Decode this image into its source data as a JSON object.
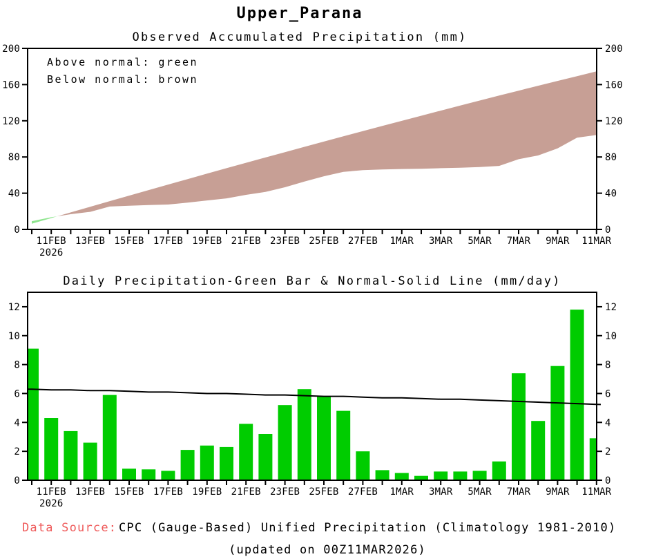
{
  "page": {
    "title": "Upper_Parana",
    "background": "#FFFFFF"
  },
  "footer": {
    "label": "Data Source:",
    "source": "CPC (Gauge-Based) Unified Precipitation (Climatology 1981-2010)",
    "updated": "(updated on 00Z11MAR2026)",
    "label_color": "#EF5B5B"
  },
  "chart_data": [
    {
      "type": "area",
      "title": "Observed Accumulated Precipitation (mm)",
      "annotations": [
        "Above normal: green",
        "Below normal: brown"
      ],
      "legend_meaning": "band between observed and normal accumulation; green where observed above normal, brown where below",
      "x": [
        "10FEB",
        "11FEB",
        "12FEB",
        "13FEB",
        "14FEB",
        "15FEB",
        "16FEB",
        "17FEB",
        "18FEB",
        "19FEB",
        "20FEB",
        "21FEB",
        "22FEB",
        "23FEB",
        "24FEB",
        "25FEB",
        "26FEB",
        "27FEB",
        "28FEB",
        "1MAR",
        "2MAR",
        "3MAR",
        "4MAR",
        "5MAR",
        "6MAR",
        "7MAR",
        "8MAR",
        "9MAR",
        "10MAR",
        "11MAR"
      ],
      "x_tick_labels": [
        "11FEB",
        "13FEB",
        "15FEB",
        "17FEB",
        "19FEB",
        "21FEB",
        "23FEB",
        "25FEB",
        "27FEB",
        "1MAR",
        "3MAR",
        "5MAR",
        "7MAR",
        "9MAR",
        "11MAR"
      ],
      "x_year_label": "2026",
      "ylim": [
        0,
        200
      ],
      "yticks": [
        0,
        40,
        80,
        120,
        160,
        200
      ],
      "grid": false,
      "series": [
        {
          "name": "Normal accumulated (mm)",
          "values": [
            6.3,
            12.55,
            18.8,
            25.0,
            31.2,
            37.35,
            43.45,
            49.55,
            55.6,
            61.6,
            67.6,
            73.55,
            79.45,
            85.35,
            91.2,
            97.0,
            102.8,
            108.55,
            114.25,
            119.95,
            125.6,
            131.2,
            136.8,
            142.35,
            147.85,
            153.3,
            158.7,
            164.05,
            169.35,
            174.6
          ]
        },
        {
          "name": "Observed accumulated (mm)",
          "values": [
            9.1,
            13.4,
            16.8,
            19.4,
            25.3,
            26.1,
            26.85,
            27.5,
            29.6,
            32.0,
            34.3,
            38.2,
            41.4,
            46.6,
            52.9,
            58.7,
            63.5,
            65.5,
            66.2,
            66.7,
            67.0,
            67.6,
            68.2,
            68.85,
            70.15,
            77.55,
            81.65,
            89.55,
            101.35,
            104.25
          ]
        }
      ],
      "colors": {
        "above_normal": "#8FE58F",
        "below_normal": "#C79F95"
      }
    },
    {
      "type": "bar",
      "title": "Daily Precipitation-Green Bar & Normal-Solid Line (mm/day)",
      "x": [
        "10FEB",
        "11FEB",
        "12FEB",
        "13FEB",
        "14FEB",
        "15FEB",
        "16FEB",
        "17FEB",
        "18FEB",
        "19FEB",
        "20FEB",
        "21FEB",
        "22FEB",
        "23FEB",
        "24FEB",
        "25FEB",
        "26FEB",
        "27FEB",
        "28FEB",
        "1MAR",
        "2MAR",
        "3MAR",
        "4MAR",
        "5MAR",
        "6MAR",
        "7MAR",
        "8MAR",
        "9MAR",
        "10MAR",
        "11MAR"
      ],
      "x_tick_labels": [
        "11FEB",
        "13FEB",
        "15FEB",
        "17FEB",
        "19FEB",
        "21FEB",
        "23FEB",
        "25FEB",
        "27FEB",
        "1MAR",
        "3MAR",
        "5MAR",
        "7MAR",
        "9MAR",
        "11MAR"
      ],
      "x_year_label": "2026",
      "ylim": [
        0,
        13
      ],
      "yticks": [
        0,
        2,
        4,
        6,
        8,
        10,
        12
      ],
      "grid": false,
      "series": [
        {
          "name": "Daily precipitation (green bar)",
          "type": "bar",
          "color": "#00CC00",
          "values": [
            9.1,
            4.3,
            3.4,
            2.6,
            5.9,
            0.8,
            0.75,
            0.65,
            2.1,
            2.4,
            2.3,
            3.9,
            3.2,
            5.2,
            6.3,
            5.8,
            4.8,
            2.0,
            0.7,
            0.5,
            0.3,
            0.6,
            0.6,
            0.65,
            1.3,
            7.4,
            4.1,
            7.9,
            11.8,
            2.9
          ]
        },
        {
          "name": "Normal (solid line)",
          "type": "line",
          "color": "#000000",
          "values": [
            6.3,
            6.25,
            6.25,
            6.2,
            6.2,
            6.15,
            6.1,
            6.1,
            6.05,
            6.0,
            6.0,
            5.95,
            5.9,
            5.9,
            5.85,
            5.8,
            5.8,
            5.75,
            5.7,
            5.7,
            5.65,
            5.6,
            5.6,
            5.55,
            5.5,
            5.45,
            5.4,
            5.35,
            5.3,
            5.25
          ]
        }
      ]
    }
  ]
}
